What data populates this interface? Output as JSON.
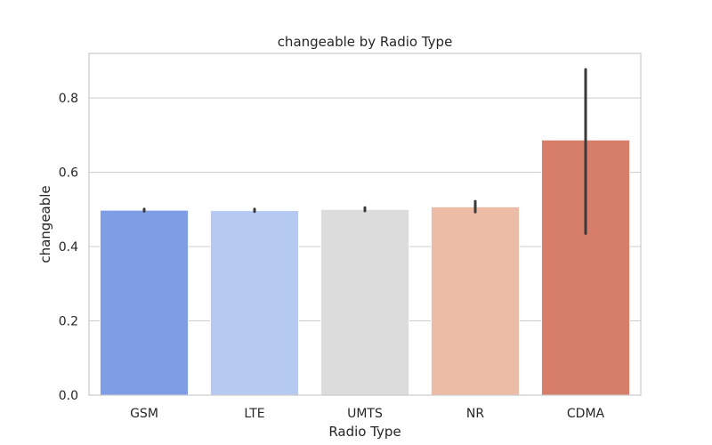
{
  "chart_data": {
    "type": "bar",
    "title": "changeable by Radio Type",
    "xlabel": "Radio Type",
    "ylabel": "changeable",
    "categories": [
      "GSM",
      "LTE",
      "UMTS",
      "NR",
      "CDMA"
    ],
    "values": [
      0.498,
      0.497,
      0.5,
      0.507,
      0.687
    ],
    "error_low": [
      0.495,
      0.494,
      0.496,
      0.493,
      0.435
    ],
    "error_high": [
      0.501,
      0.501,
      0.505,
      0.522,
      0.877
    ],
    "colors": [
      "#7f9de5",
      "#b6c9f3",
      "#dcdcdc",
      "#ecbca6",
      "#d67e6a"
    ],
    "ylim": [
      0,
      0.92
    ],
    "yticks": [
      0.0,
      0.2,
      0.4,
      0.6,
      0.8
    ],
    "ytick_labels": [
      "0.0",
      "0.2",
      "0.4",
      "0.6",
      "0.8"
    ],
    "grid": true
  }
}
